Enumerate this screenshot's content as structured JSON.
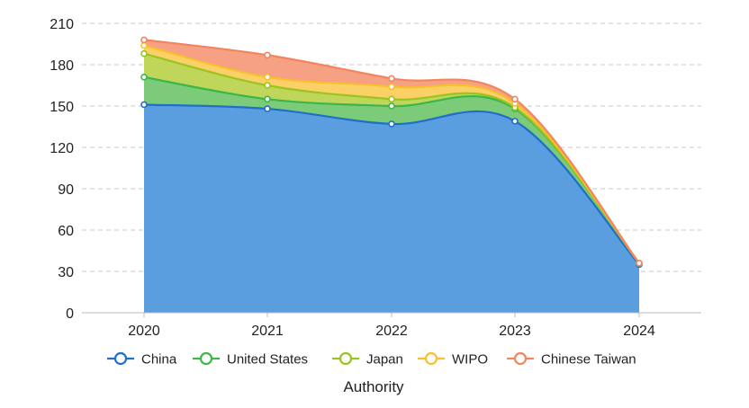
{
  "chart_data": {
    "type": "area",
    "stacked": true,
    "title": "",
    "xlabel": "Authority",
    "ylabel": "",
    "categories": [
      "2020",
      "2021",
      "2022",
      "2023",
      "2024"
    ],
    "y_ticks": [
      0,
      30,
      60,
      90,
      120,
      150,
      180,
      210
    ],
    "ylim": [
      0,
      210
    ],
    "grid": true,
    "legend_position": "bottom",
    "series": [
      {
        "name": "China",
        "values": [
          151,
          148,
          137,
          139,
          35
        ],
        "color": "#1f6fc8",
        "fill": "#5b9ee0"
      },
      {
        "name": "United States",
        "values": [
          20,
          7,
          13,
          9,
          1
        ],
        "color": "#3cb54a",
        "fill": "#7ccb78"
      },
      {
        "name": "Japan",
        "values": [
          17,
          10,
          5,
          1,
          0
        ],
        "color": "#9ac420",
        "fill": "#bfd65a"
      },
      {
        "name": "WIPO",
        "values": [
          6,
          6,
          9,
          3,
          0
        ],
        "color": "#f7c02c",
        "fill": "#fad067"
      },
      {
        "name": "Chinese Taiwan",
        "values": [
          4,
          16,
          6,
          3,
          0
        ],
        "color": "#f2855e",
        "fill": "#f6a184"
      }
    ]
  }
}
